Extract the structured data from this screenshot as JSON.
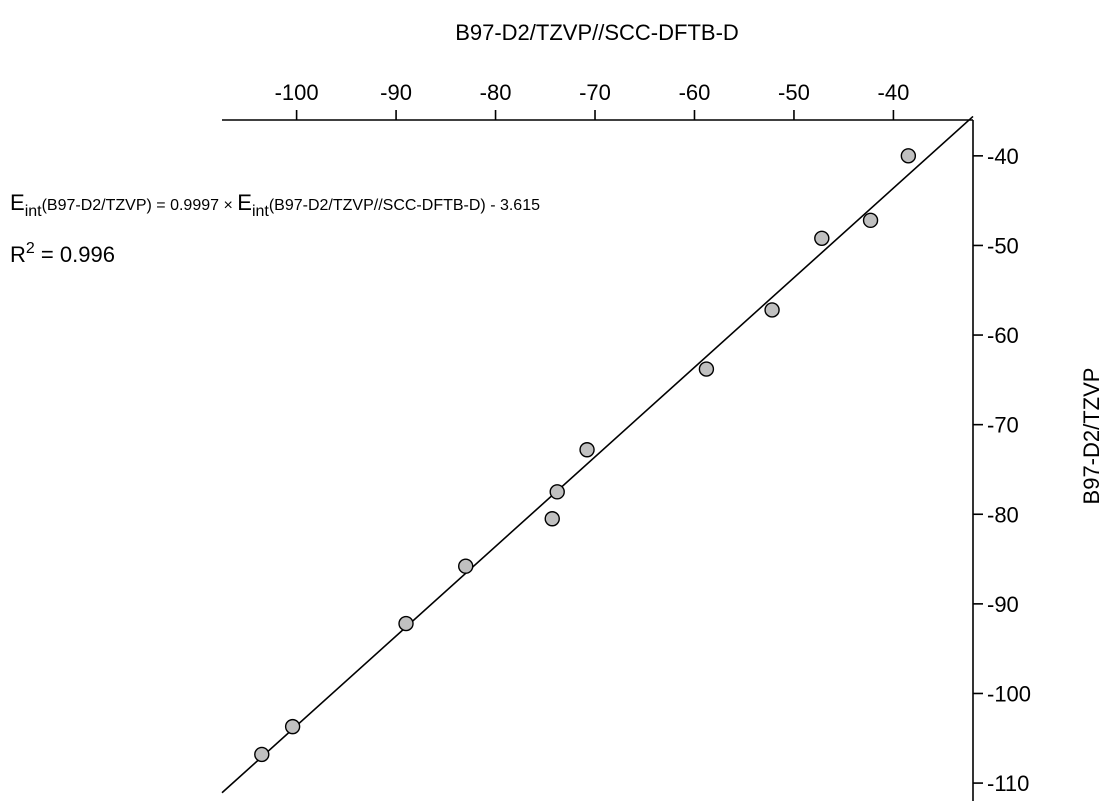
{
  "chart_data": {
    "type": "scatter",
    "xlabel": "B97-D2/TZVP//SCC-DFTB-D",
    "ylabel": "B97-D2/TZVP",
    "xlim": [
      -107.5,
      -32
    ],
    "ylim": [
      -112,
      -36
    ],
    "x_ticks": [
      -100,
      -90,
      -80,
      -70,
      -60,
      -50,
      -40
    ],
    "y_ticks": [
      -40,
      -50,
      -60,
      -70,
      -80,
      -90,
      -100,
      -110
    ],
    "x_axis_position": "top",
    "y_axis_position": "right",
    "grid": false,
    "points": [
      {
        "x": -103.5,
        "y": -106.8
      },
      {
        "x": -100.4,
        "y": -103.7
      },
      {
        "x": -89.0,
        "y": -92.2
      },
      {
        "x": -83.0,
        "y": -85.8
      },
      {
        "x": -74.3,
        "y": -80.5
      },
      {
        "x": -73.8,
        "y": -77.5
      },
      {
        "x": -70.8,
        "y": -72.8
      },
      {
        "x": -58.8,
        "y": -63.8
      },
      {
        "x": -52.2,
        "y": -57.2
      },
      {
        "x": -47.2,
        "y": -49.2
      },
      {
        "x": -42.3,
        "y": -47.2
      },
      {
        "x": -38.5,
        "y": -40.0
      }
    ],
    "fit": {
      "slope": 0.9997,
      "intercept": -3.615,
      "x_range": [
        -107.5,
        -32
      ]
    },
    "colors": {
      "marker_fill": "#c0c0c0",
      "marker_stroke": "#000000",
      "line": "#000000"
    },
    "annotation": {
      "e1": "E",
      "sub1": "int",
      "part1": "(B97-D2/TZVP) = 0.9997 × ",
      "e2": "E",
      "sub2": "int",
      "part2": "(B97-D2/TZVP//SCC-DFTB-D) - 3.615",
      "r_symbol": "R",
      "r_sup": "2",
      "r_value": " = 0.996"
    }
  }
}
